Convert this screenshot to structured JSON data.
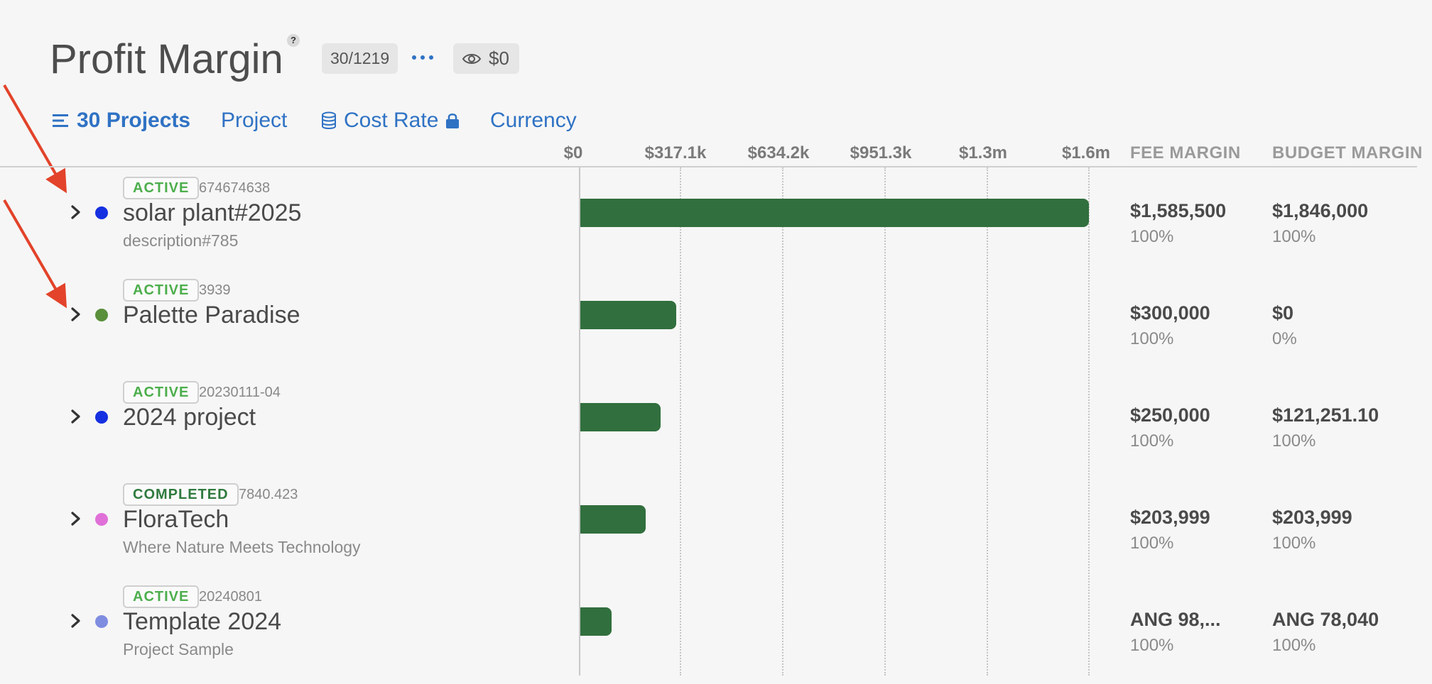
{
  "header": {
    "title": "Profit Margin",
    "help_label": "?",
    "counter": "30/1219",
    "visibility_value": "$0"
  },
  "toolbar": {
    "projects_count_label": "30 Projects",
    "project_label": "Project",
    "cost_rate_label": "Cost Rate",
    "currency_label": "Currency"
  },
  "chart_data": {
    "type": "bar",
    "orientation": "horizontal",
    "x_ticks": [
      "$0",
      "$317.1k",
      "$634.2k",
      "$951.3k",
      "$1.3m",
      "$1.6m"
    ],
    "categories": [
      "solar plant#2025",
      "Palette Paradise",
      "2024 project",
      "FloraTech",
      "Template 2024"
    ],
    "values": [
      1585500,
      300000,
      250000,
      203999,
      98000
    ],
    "xlim": [
      0,
      1585500
    ]
  },
  "columns": {
    "fee_margin": "FEE MARGIN",
    "budget_margin": "BUDGET MARGIN"
  },
  "projects": [
    {
      "status": "ACTIVE",
      "status_type": "active",
      "code": "674674638",
      "name": "solar plant#2025",
      "description": "description#785",
      "dot_color": "#1530e0",
      "fee_margin": "$1,585,500",
      "fee_pct": "100%",
      "budget_margin": "$1,846,000",
      "budget_pct": "100%"
    },
    {
      "status": "ACTIVE",
      "status_type": "active",
      "code": "3939",
      "name": "Palette Paradise",
      "description": "",
      "dot_color": "#5a8f3c",
      "fee_margin": "$300,000",
      "fee_pct": "100%",
      "budget_margin": "$0",
      "budget_pct": "0%"
    },
    {
      "status": "ACTIVE",
      "status_type": "active",
      "code": "20230111-04",
      "name": "2024 project",
      "description": "",
      "dot_color": "#1530e0",
      "fee_margin": "$250,000",
      "fee_pct": "100%",
      "budget_margin": "$121,251.10",
      "budget_pct": "100%"
    },
    {
      "status": "COMPLETED",
      "status_type": "completed",
      "code": "7840.423",
      "name": "FloraTech",
      "description": "Where Nature Meets Technology",
      "dot_color": "#e070d8",
      "fee_margin": "$203,999",
      "fee_pct": "100%",
      "budget_margin": "$203,999",
      "budget_pct": "100%"
    },
    {
      "status": "ACTIVE",
      "status_type": "active",
      "code": "20240801",
      "name": "Template 2024",
      "description": "Project Sample",
      "dot_color": "#7f8de0",
      "fee_margin": "ANG 98,...",
      "fee_pct": "100%",
      "budget_margin": "ANG 78,040",
      "budget_pct": "100%"
    }
  ],
  "colors": {
    "accent": "#2f72c4",
    "bar": "#316f3e",
    "annotation_arrow": "#e2432a"
  },
  "icons": [
    "help-icon",
    "more-icon",
    "eye-icon",
    "list-icon",
    "database-icon",
    "lock-icon",
    "chevron-right-icon"
  ]
}
